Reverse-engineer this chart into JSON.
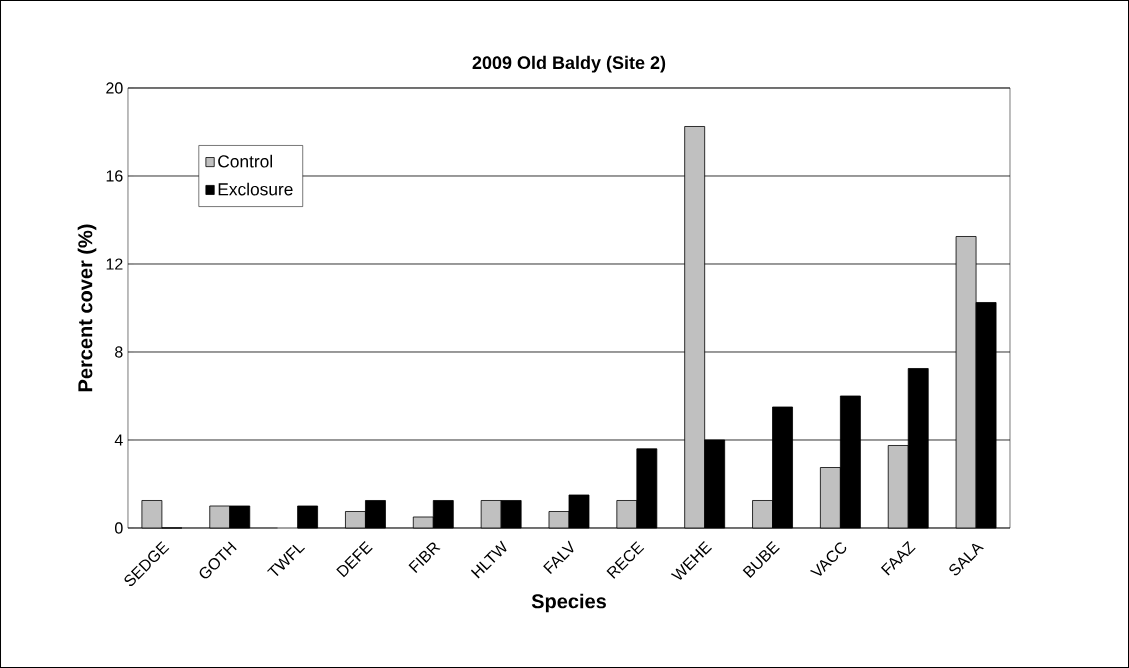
{
  "chart_data": {
    "type": "bar",
    "title": "2009 Old Baldy (Site 2)",
    "xlabel": "Species",
    "ylabel": "Percent cover (%)",
    "categories": [
      "SEDGE",
      "GOTH",
      "TWFL",
      "DEFE",
      "FIBR",
      "HLTW",
      "FALV",
      "RECE",
      "WEHE",
      "BUBE",
      "VACC",
      "FAAZ",
      "SALA"
    ],
    "series": [
      {
        "name": "Control",
        "color": "#c0c0c0",
        "values": [
          1.25,
          1.0,
          0,
          0.75,
          0.5,
          1.25,
          0.75,
          1.25,
          18.25,
          1.25,
          2.75,
          3.75,
          13.25
        ]
      },
      {
        "name": "Exclosure",
        "color": "#000000",
        "values": [
          0,
          1.0,
          1.0,
          1.25,
          1.25,
          1.25,
          1.5,
          3.6,
          4.0,
          5.5,
          6.0,
          7.25,
          10.25
        ]
      }
    ],
    "ylim": [
      0,
      20
    ],
    "yticks": [
      0,
      4,
      8,
      12,
      16,
      20
    ],
    "grid": "y",
    "legend": "top left"
  }
}
